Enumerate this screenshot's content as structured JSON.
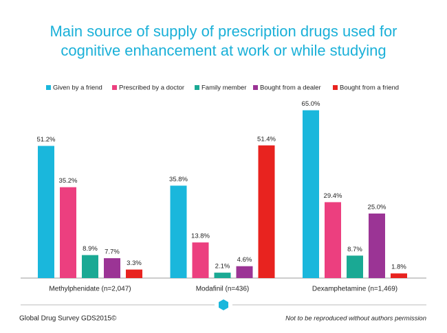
{
  "chart_data": {
    "type": "bar",
    "title": [
      "Main source of supply of prescription drugs used for",
      "cognitive enhancement at work or while studying"
    ],
    "categories": [
      "Methylphenidate (n=2,047)",
      "Modafinil (n=436)",
      "Dexamphetamine (n=1,469)"
    ],
    "series": [
      {
        "name": "Given by a friend",
        "color": "#1ab7dc",
        "values": [
          51.2,
          35.8,
          65.0
        ],
        "value_labels": [
          "51.2%",
          "35.8%",
          "65.0%"
        ]
      },
      {
        "name": "Prescribed by a doctor",
        "color": "#ec3f7f",
        "values": [
          35.2,
          13.8,
          29.4
        ],
        "value_labels": [
          "35.2%",
          "13.8%",
          "29.4%"
        ]
      },
      {
        "name": "Family member",
        "color": "#1aa994",
        "values": [
          8.9,
          2.1,
          8.7
        ],
        "value_labels": [
          "8.9%",
          "2.1%",
          "8.7%"
        ]
      },
      {
        "name": "Bought from a dealer",
        "color": "#9b3495",
        "values": [
          7.7,
          4.6,
          25.0
        ],
        "value_labels": [
          "7.7%",
          "4.6%",
          "25.0%"
        ]
      },
      {
        "name": "Bought from a friend",
        "color": "#e8231f",
        "values": [
          3.3,
          51.4,
          1.8
        ],
        "value_labels": [
          "3.3%",
          "51.4%",
          "1.8%"
        ]
      }
    ],
    "legend": "top",
    "source": "Global Drug Survey GDS2015©",
    "note": "Not to be reproduced without authors permission"
  }
}
